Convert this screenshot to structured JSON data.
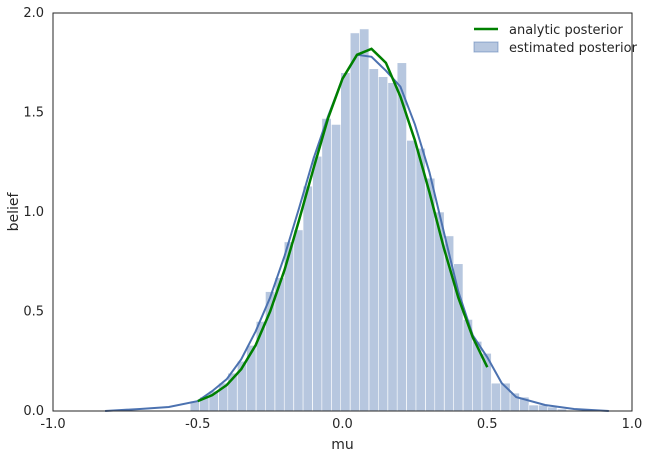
{
  "chart_data": {
    "type": "bar",
    "xlabel": "mu",
    "ylabel": "belief",
    "xlim": [
      -1.0,
      1.0
    ],
    "ylim": [
      0.0,
      2.0
    ],
    "xticks": [
      "-1.0",
      "-0.5",
      "0.0",
      "0.5",
      "1.0"
    ],
    "yticks": [
      "0.0",
      "0.5",
      "1.0",
      "1.5",
      "2.0"
    ],
    "grid": false,
    "legend_position": "top-right",
    "legend": [
      "analytic posterior",
      "estimated posterior"
    ],
    "histogram": {
      "name": "estimated posterior",
      "bin_width": 0.0325,
      "bin_centers": [
        -0.51,
        -0.477,
        -0.445,
        -0.412,
        -0.38,
        -0.347,
        -0.315,
        -0.282,
        -0.25,
        -0.217,
        -0.185,
        -0.152,
        -0.12,
        -0.087,
        -0.055,
        -0.022,
        0.01,
        0.043,
        0.075,
        0.108,
        0.14,
        0.173,
        0.205,
        0.238,
        0.27,
        0.303,
        0.335,
        0.368,
        0.4,
        0.433,
        0.465,
        0.498,
        0.53,
        0.563,
        0.595,
        0.628,
        0.66,
        0.693,
        0.725,
        0.758
      ],
      "values": [
        0.05,
        0.07,
        0.1,
        0.14,
        0.19,
        0.25,
        0.33,
        0.45,
        0.6,
        0.67,
        0.85,
        0.91,
        1.13,
        1.28,
        1.47,
        1.44,
        1.7,
        1.9,
        1.92,
        1.72,
        1.68,
        1.65,
        1.75,
        1.36,
        1.32,
        1.17,
        1.0,
        0.88,
        0.74,
        0.46,
        0.35,
        0.29,
        0.14,
        0.14,
        0.09,
        0.07,
        0.03,
        0.03,
        0.02,
        0.01
      ],
      "color": "#4c72b0"
    },
    "kde": {
      "x": [
        -0.82,
        -0.7,
        -0.6,
        -0.5,
        -0.45,
        -0.4,
        -0.35,
        -0.3,
        -0.25,
        -0.2,
        -0.15,
        -0.1,
        -0.05,
        0.0,
        0.05,
        0.1,
        0.15,
        0.2,
        0.25,
        0.3,
        0.35,
        0.4,
        0.45,
        0.5,
        0.55,
        0.6,
        0.7,
        0.8,
        0.92
      ],
      "y": [
        0.0,
        0.01,
        0.02,
        0.05,
        0.1,
        0.16,
        0.26,
        0.4,
        0.57,
        0.78,
        1.02,
        1.27,
        1.48,
        1.67,
        1.79,
        1.78,
        1.71,
        1.63,
        1.44,
        1.2,
        0.9,
        0.6,
        0.38,
        0.27,
        0.14,
        0.07,
        0.03,
        0.01,
        0.0
      ],
      "color": "#4c72b0"
    },
    "series": [
      {
        "name": "analytic posterior",
        "color": "#008000",
        "x": [
          -0.5,
          -0.45,
          -0.4,
          -0.35,
          -0.3,
          -0.25,
          -0.2,
          -0.15,
          -0.1,
          -0.05,
          0.0,
          0.05,
          0.1,
          0.15,
          0.2,
          0.25,
          0.3,
          0.35,
          0.4,
          0.45,
          0.5
        ],
        "y": [
          0.05,
          0.08,
          0.13,
          0.21,
          0.33,
          0.5,
          0.71,
          0.96,
          1.22,
          1.47,
          1.67,
          1.79,
          1.82,
          1.75,
          1.58,
          1.36,
          1.1,
          0.82,
          0.57,
          0.37,
          0.22
        ]
      }
    ]
  }
}
